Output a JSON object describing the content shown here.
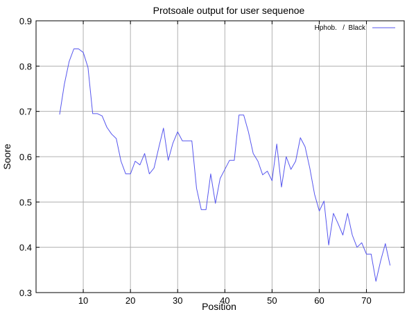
{
  "chart_data": {
    "type": "line",
    "title": "Protsoale output for user sequenoe",
    "xlabel": "Position",
    "ylabel": "Soore",
    "xlim": [
      0,
      78
    ],
    "ylim": [
      0.3,
      0.9
    ],
    "x_ticks": [
      10,
      20,
      30,
      40,
      50,
      60,
      70
    ],
    "y_ticks": [
      0.3,
      0.4,
      0.5,
      0.6,
      0.7,
      0.8,
      0.9
    ],
    "y_tick_labels": [
      "0.3",
      "0.4",
      "0.5",
      "0.6",
      "0.7",
      "0.8",
      "0.9"
    ],
    "grid": true,
    "legend_position": "top-right",
    "series": [
      {
        "name": "Hphob.   /  Black",
        "color": "#5555ee",
        "x": [
          5,
          6,
          7,
          8,
          9,
          10,
          11,
          12,
          13,
          14,
          15,
          16,
          17,
          18,
          19,
          20,
          21,
          22,
          23,
          24,
          25,
          26,
          27,
          28,
          29,
          30,
          31,
          32,
          33,
          34,
          35,
          36,
          37,
          38,
          39,
          40,
          41,
          42,
          43,
          44,
          45,
          46,
          47,
          48,
          49,
          50,
          51,
          52,
          53,
          54,
          55,
          56,
          57,
          58,
          59,
          60,
          61,
          62,
          63,
          64,
          65,
          66,
          67,
          68,
          69,
          70,
          71,
          72,
          73,
          74,
          75
        ],
        "values": [
          0.693,
          0.76,
          0.81,
          0.838,
          0.838,
          0.83,
          0.797,
          0.695,
          0.695,
          0.69,
          0.665,
          0.65,
          0.64,
          0.59,
          0.562,
          0.562,
          0.59,
          0.582,
          0.607,
          0.562,
          0.575,
          0.62,
          0.663,
          0.592,
          0.63,
          0.655,
          0.635,
          0.635,
          0.635,
          0.53,
          0.483,
          0.483,
          0.562,
          0.497,
          0.552,
          0.572,
          0.592,
          0.592,
          0.692,
          0.692,
          0.655,
          0.607,
          0.59,
          0.56,
          0.568,
          0.547,
          0.628,
          0.533,
          0.6,
          0.572,
          0.59,
          0.642,
          0.622,
          0.575,
          0.517,
          0.48,
          0.502,
          0.405,
          0.475,
          0.452,
          0.427,
          0.475,
          0.427,
          0.4,
          0.41,
          0.385,
          0.385,
          0.325,
          0.37,
          0.408,
          0.36
        ]
      }
    ]
  }
}
